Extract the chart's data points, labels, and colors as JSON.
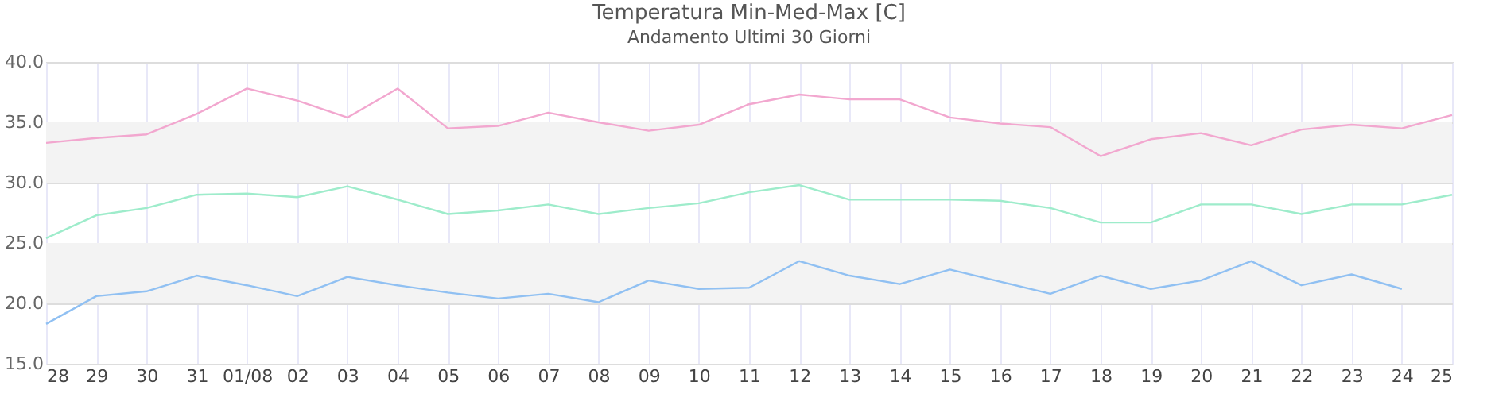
{
  "chart_data": {
    "type": "line",
    "title": "Temperatura Min-Med-Max [C]",
    "subtitle": "Andamento Ultimi 30 Giorni",
    "categories": [
      "28",
      "29",
      "30",
      "31",
      "01/08",
      "02",
      "03",
      "04",
      "05",
      "06",
      "07",
      "08",
      "09",
      "10",
      "11",
      "12",
      "13",
      "14",
      "15",
      "16",
      "17",
      "18",
      "19",
      "20",
      "21",
      "22",
      "23",
      "24",
      "25"
    ],
    "series": [
      {
        "color": "#f2a7cf",
        "values": [
          33.3,
          33.7,
          34.0,
          35.7,
          37.8,
          36.8,
          35.4,
          37.8,
          34.5,
          34.7,
          35.8,
          35.0,
          34.3,
          34.8,
          36.5,
          37.3,
          36.9,
          36.9,
          35.4,
          34.9,
          34.6,
          32.2,
          33.6,
          34.1,
          33.1,
          34.4,
          34.8,
          34.5,
          35.6
        ]
      },
      {
        "color": "#9eeccb",
        "values": [
          25.4,
          27.3,
          27.9,
          29.0,
          29.1,
          28.8,
          29.7,
          28.6,
          27.4,
          27.7,
          28.2,
          27.4,
          27.9,
          28.3,
          29.2,
          29.8,
          28.6,
          28.6,
          28.6,
          28.5,
          27.9,
          26.7,
          26.7,
          28.2,
          28.2,
          27.4,
          28.2,
          28.2,
          29.0
        ]
      },
      {
        "color": "#90c0f2",
        "values": [
          18.3,
          20.6,
          21.0,
          22.3,
          21.5,
          20.6,
          22.2,
          21.5,
          20.9,
          20.4,
          20.8,
          20.1,
          21.9,
          21.2,
          21.3,
          23.5,
          22.3,
          21.6,
          22.8,
          21.8,
          20.8,
          22.3,
          21.2,
          21.9,
          23.5,
          21.5,
          22.4,
          21.2,
          null
        ]
      }
    ],
    "ylim": [
      15,
      40
    ],
    "yticks": [
      {
        "value": 15,
        "label": "15.0"
      },
      {
        "value": 20,
        "label": "20.0"
      },
      {
        "value": 25,
        "label": "25.0"
      },
      {
        "value": 30,
        "label": "30.0"
      },
      {
        "value": 35,
        "label": "35.0"
      },
      {
        "value": 40,
        "label": "40.0"
      }
    ],
    "bands": [
      {
        "axis": "y",
        "from": 20,
        "to": 25,
        "color": "#f3f3f3"
      },
      {
        "axis": "y",
        "from": 30,
        "to": 35,
        "color": "#f3f3f3"
      }
    ],
    "grid": true,
    "marker": "none",
    "line_style": "solid"
  }
}
